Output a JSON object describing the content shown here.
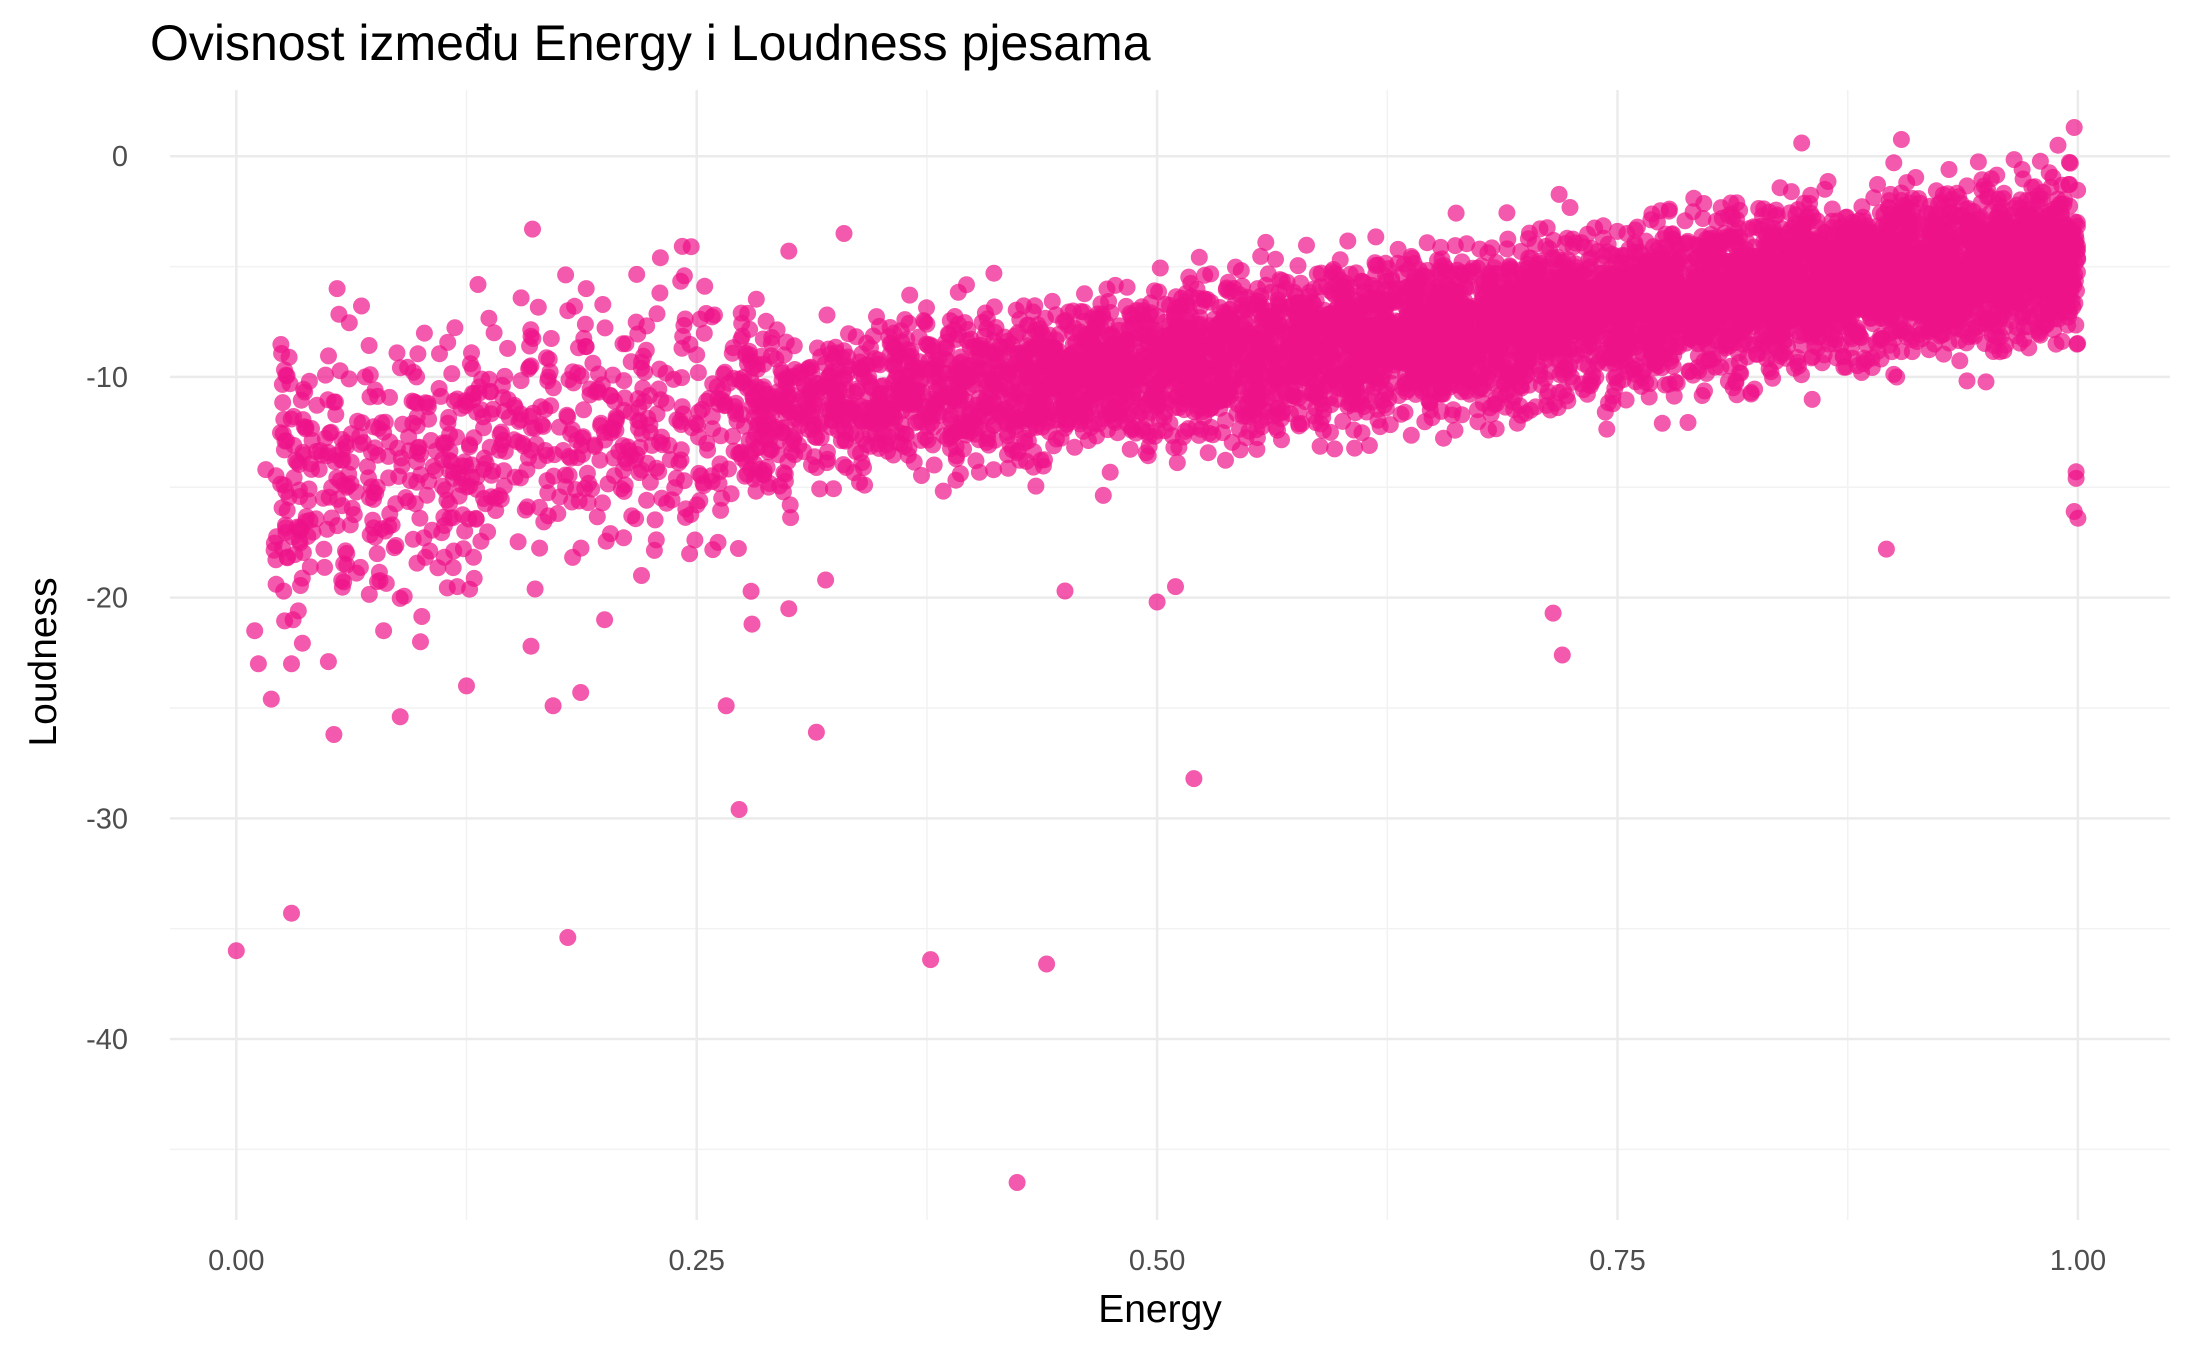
{
  "chart_data": {
    "type": "scatter",
    "title": "Ovisnost između Energy i Loudness pjesama",
    "xlabel": "Energy",
    "ylabel": "Loudness",
    "xlim": [
      -0.036,
      1.05
    ],
    "ylim": [
      -48.2,
      3.0
    ],
    "x_ticks": [
      0.0,
      0.25,
      0.5,
      0.75,
      1.0
    ],
    "x_tick_labels": [
      "0.00",
      "0.25",
      "0.50",
      "0.75",
      "1.00"
    ],
    "y_ticks": [
      0,
      -10,
      -20,
      -30,
      -40
    ],
    "y_tick_labels": [
      "0",
      "-10",
      "-20",
      "-30",
      "-40"
    ],
    "grid": true,
    "point_color": "#EE1289",
    "point_opacity": 0.7,
    "points_note": "dense cloud; visible outliers listed in points, bulk approximated by main_band",
    "main_band": {
      "x_range": [
        0.27,
        1.0
      ],
      "center_at_x": [
        [
          0.27,
          -11.5
        ],
        [
          0.4,
          -10.5
        ],
        [
          0.5,
          -9.5
        ],
        [
          0.6,
          -8.5
        ],
        [
          0.7,
          -7.5
        ],
        [
          0.8,
          -6.3
        ],
        [
          0.9,
          -5.3
        ],
        [
          1.0,
          -4.5
        ]
      ],
      "spread": 3.2
    },
    "points": [
      [
        0.0,
        -36.0
      ],
      [
        0.03,
        -34.3
      ],
      [
        0.18,
        -35.4
      ],
      [
        0.377,
        -36.4
      ],
      [
        0.44,
        -36.6
      ],
      [
        0.424,
        -46.5
      ],
      [
        0.273,
        -29.6
      ],
      [
        0.52,
        -28.2
      ],
      [
        0.315,
        -26.1
      ],
      [
        0.053,
        -26.2
      ],
      [
        0.266,
        -24.9
      ],
      [
        0.089,
        -25.4
      ],
      [
        0.019,
        -24.6
      ],
      [
        0.187,
        -24.3
      ],
      [
        0.125,
        -24.0
      ],
      [
        0.172,
        -24.9
      ],
      [
        0.72,
        -22.6
      ],
      [
        0.715,
        -20.7
      ],
      [
        0.896,
        -17.8
      ],
      [
        0.01,
        -21.5
      ],
      [
        0.012,
        -23.0
      ],
      [
        1.0,
        -16.4
      ],
      [
        0.999,
        -14.6
      ],
      [
        0.998,
        -16.1
      ],
      [
        0.999,
        -14.3
      ],
      [
        0.5,
        -20.2
      ],
      [
        0.51,
        -19.5
      ],
      [
        0.45,
        -19.7
      ],
      [
        0.016,
        -14.2
      ],
      [
        0.04,
        -16.5
      ],
      [
        0.06,
        -15.0
      ],
      [
        0.08,
        -12.5
      ],
      [
        0.1,
        -13.5
      ],
      [
        0.12,
        -11.0
      ],
      [
        0.14,
        -8.0
      ],
      [
        0.16,
        -9.5
      ],
      [
        0.18,
        -7.0
      ],
      [
        0.19,
        -6.0
      ],
      [
        0.21,
        -8.5
      ],
      [
        0.23,
        -6.2
      ],
      [
        0.25,
        -9.0
      ],
      [
        0.07,
        -10.0
      ],
      [
        0.9,
        -0.3
      ],
      [
        0.93,
        -0.6
      ],
      [
        0.998,
        1.3
      ],
      [
        0.85,
        0.6
      ],
      [
        0.3,
        -4.3
      ],
      [
        0.33,
        -3.5
      ],
      [
        0.2,
        -21.0
      ],
      [
        0.22,
        -19.0
      ],
      [
        0.28,
        -21.2
      ],
      [
        0.3,
        -20.5
      ],
      [
        0.32,
        -19.2
      ],
      [
        0.12,
        -19.5
      ],
      [
        0.05,
        -22.9
      ],
      [
        0.03,
        -23.0
      ],
      [
        0.1,
        -22.0
      ],
      [
        0.16,
        -22.2
      ],
      [
        0.08,
        -21.5
      ],
      [
        0.06,
        -18.0
      ]
    ]
  }
}
